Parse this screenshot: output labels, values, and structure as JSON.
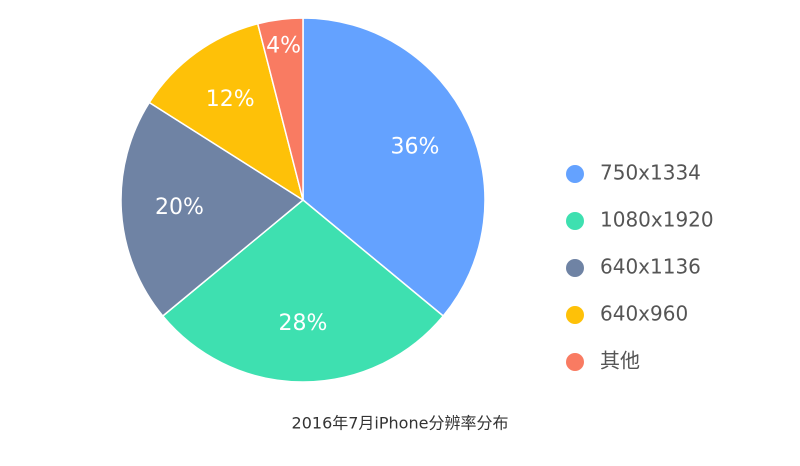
{
  "chart_data": {
    "type": "pie",
    "title": "2016年7月iPhone分辨率分布",
    "categories": [
      "750x1334",
      "1080x1920",
      "640x1136",
      "640x960",
      "其他"
    ],
    "values": [
      36,
      28,
      20,
      12,
      4
    ],
    "value_labels": [
      "36%",
      "28%",
      "20%",
      "12%",
      "4%"
    ],
    "colors": [
      "#64a2ff",
      "#3ee0b0",
      "#6f83a4",
      "#fec108",
      "#f97b62"
    ]
  }
}
